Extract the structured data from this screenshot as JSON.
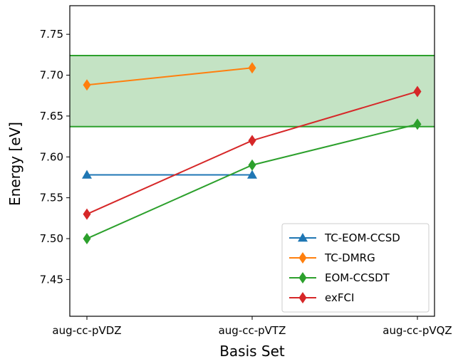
{
  "chart_data": {
    "type": "line",
    "title": "",
    "xlabel": "Basis Set",
    "ylabel": "Energy [eV]",
    "categories": [
      "aug-cc-pVDZ",
      "aug-cc-pVTZ",
      "aug-cc-pVQZ"
    ],
    "ylim": [
      7.405,
      7.785
    ],
    "yticks": [
      7.45,
      7.5,
      7.55,
      7.6,
      7.65,
      7.7,
      7.75
    ],
    "ytick_labels": [
      "7.45",
      "7.50",
      "7.55",
      "7.60",
      "7.65",
      "7.70",
      "7.75"
    ],
    "grid": false,
    "legend_position": "lower-right",
    "band": {
      "ymin": 7.637,
      "ymax": 7.724,
      "fill": "#c4e3c4",
      "edge": "#2ca02c"
    },
    "series": [
      {
        "name": "TC-EOM-CCSD",
        "values": [
          7.578,
          7.578,
          null
        ],
        "color": "#1f77b4",
        "marker": "triangle"
      },
      {
        "name": "TC-DMRG",
        "values": [
          7.688,
          7.709,
          null
        ],
        "color": "#ff7f0e",
        "marker": "diamond"
      },
      {
        "name": "EOM-CCSDT",
        "values": [
          7.5,
          7.59,
          7.64
        ],
        "color": "#2ca02c",
        "marker": "diamond"
      },
      {
        "name": "exFCI",
        "values": [
          7.53,
          7.62,
          7.68
        ],
        "color": "#d62728",
        "marker": "diamond"
      }
    ]
  }
}
